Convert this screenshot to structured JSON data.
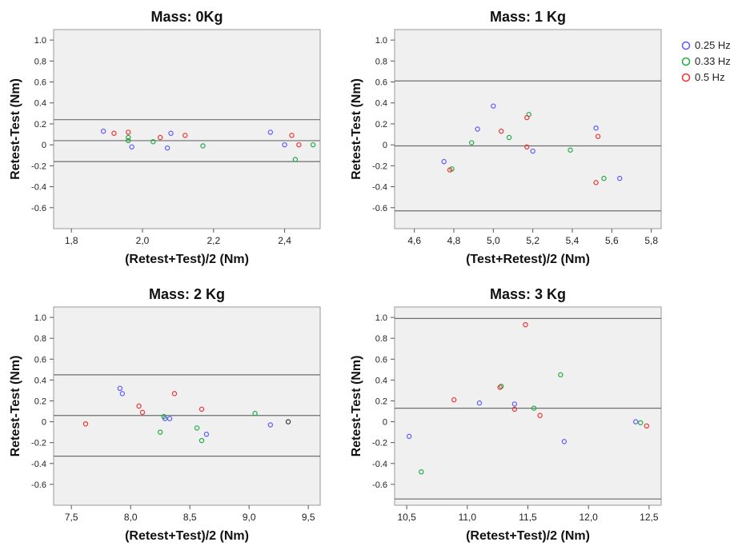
{
  "legend": {
    "placement": "top-right",
    "entries": [
      {
        "label": "0.25 Hz",
        "color": "#5b5bff"
      },
      {
        "label": "0.33 Hz",
        "color": "#22aa44"
      },
      {
        "label": "0.5 Hz",
        "color": "#ee3333"
      }
    ]
  },
  "chart_data": [
    {
      "type": "scatter",
      "title": "Mass: 0Kg",
      "xlabel": "(Retest+Test)/2 (Nm)",
      "ylabel": "Retest-Test (Nm)",
      "xlim": [
        1.75,
        2.5
      ],
      "ylim": [
        -0.8,
        1.1
      ],
      "xticks": [
        1.8,
        2.0,
        2.2,
        2.4
      ],
      "xtick_labels": [
        "1,8",
        "2,0",
        "2,2",
        "2,4"
      ],
      "yticks": [
        -0.6,
        -0.4,
        -0.2,
        0,
        0.2,
        0.4,
        0.6,
        0.8,
        1.0
      ],
      "ytick_labels": [
        "-0.6",
        "-0.4",
        "-0.2",
        "0",
        "0.2",
        "0.4",
        "0.6",
        "0.8",
        "1.0"
      ],
      "reference_lines": [
        0.24,
        0.04,
        -0.16
      ],
      "series": [
        {
          "name": "0.25 Hz",
          "x": [
            1.89,
            1.97,
            2.07,
            2.08,
            2.36,
            2.4
          ],
          "y": [
            0.13,
            -0.02,
            -0.03,
            0.11,
            0.12,
            0.0
          ]
        },
        {
          "name": "0.33 Hz",
          "x": [
            1.96,
            1.96,
            2.03,
            2.17,
            2.43,
            2.48
          ],
          "y": [
            0.04,
            0.07,
            0.03,
            -0.01,
            -0.14,
            0.0
          ]
        },
        {
          "name": "0.5 Hz",
          "x": [
            1.92,
            1.96,
            2.05,
            2.12,
            2.42,
            2.44
          ],
          "y": [
            0.11,
            0.12,
            0.07,
            0.09,
            0.09,
            0.0
          ]
        }
      ]
    },
    {
      "type": "scatter",
      "title": "Mass: 1 Kg",
      "xlabel": "(Test+Retest)/2 (Nm)",
      "ylabel": "Retest-Test (Nm)",
      "xlim": [
        4.5,
        5.85
      ],
      "ylim": [
        -0.8,
        1.1
      ],
      "xticks": [
        4.6,
        4.8,
        5.0,
        5.2,
        5.4,
        5.6,
        5.8
      ],
      "xtick_labels": [
        "4,6",
        "4,8",
        "5,0",
        "5,2",
        "5,4",
        "5,6",
        "5,8"
      ],
      "yticks": [
        -0.6,
        -0.4,
        -0.2,
        0,
        0.2,
        0.4,
        0.6,
        0.8,
        1.0
      ],
      "ytick_labels": [
        "-0.6",
        "-0.4",
        "-0.2",
        "0",
        "0.2",
        "0.4",
        "0.6",
        "0.8",
        "1.0"
      ],
      "reference_lines": [
        0.61,
        -0.01,
        -0.63
      ],
      "series": [
        {
          "name": "0.25 Hz",
          "x": [
            4.75,
            4.92,
            5.0,
            5.2,
            5.52,
            5.64
          ],
          "y": [
            -0.16,
            0.15,
            0.37,
            -0.06,
            0.16,
            -0.32
          ]
        },
        {
          "name": "0.33 Hz",
          "x": [
            4.79,
            4.89,
            5.08,
            5.18,
            5.39,
            5.56
          ],
          "y": [
            -0.23,
            0.02,
            0.07,
            0.29,
            -0.05,
            -0.32
          ]
        },
        {
          "name": "0.5 Hz",
          "x": [
            4.78,
            5.04,
            5.17,
            5.17,
            5.52,
            5.53
          ],
          "y": [
            -0.24,
            0.13,
            0.26,
            -0.02,
            -0.36,
            0.08
          ]
        }
      ]
    },
    {
      "type": "scatter",
      "title": "Mass: 2 Kg",
      "xlabel": "(Retest+Test)/2 (Nm)",
      "ylabel": "Retest-Test (Nm)",
      "xlim": [
        7.35,
        9.6
      ],
      "ylim": [
        -0.8,
        1.1
      ],
      "xticks": [
        7.5,
        8.0,
        8.5,
        9.0,
        9.5
      ],
      "xtick_labels": [
        "7,5",
        "8,0",
        "8,5",
        "9,0",
        "9,5"
      ],
      "yticks": [
        -0.6,
        -0.4,
        -0.2,
        0,
        0.2,
        0.4,
        0.6,
        0.8,
        1.0
      ],
      "ytick_labels": [
        "-0.6",
        "-0.4",
        "-0.2",
        "0",
        "0.2",
        "0.4",
        "0.6",
        "0.8",
        "1.0"
      ],
      "reference_lines": [
        0.45,
        0.06,
        -0.33
      ],
      "series": [
        {
          "name": "0.25 Hz",
          "x": [
            7.91,
            7.93,
            8.29,
            8.33,
            8.64,
            9.18
          ],
          "y": [
            0.32,
            0.27,
            0.03,
            0.03,
            -0.12,
            -0.03
          ]
        },
        {
          "name": "0.33 Hz",
          "x": [
            8.25,
            8.28,
            8.56,
            8.6,
            9.05
          ],
          "y": [
            -0.1,
            0.05,
            -0.06,
            -0.18,
            0.08
          ]
        },
        {
          "name": "0.5 Hz",
          "x": [
            7.62,
            8.07,
            8.1,
            8.37,
            8.6
          ],
          "y": [
            -0.02,
            0.15,
            0.09,
            0.27,
            0.12
          ]
        },
        {
          "name": "",
          "color": "#333333",
          "x": [
            9.33
          ],
          "y": [
            0.0
          ]
        }
      ]
    },
    {
      "type": "scatter",
      "title": "Mass: 3 Kg",
      "xlabel": "(Retest+Test)/2 (Nm)",
      "ylabel": "Retest-Test (Nm)",
      "xlim": [
        10.4,
        12.6
      ],
      "ylim": [
        -0.8,
        1.1
      ],
      "xticks": [
        10.5,
        11.0,
        11.5,
        12.0,
        12.5
      ],
      "xtick_labels": [
        "10,5",
        "11,0",
        "11,5",
        "12,0",
        "12,5"
      ],
      "yticks": [
        -0.6,
        -0.4,
        -0.2,
        0,
        0.2,
        0.4,
        0.6,
        0.8,
        1.0
      ],
      "ytick_labels": [
        "-0.6",
        "-0.4",
        "-0.2",
        "0",
        "0.2",
        "0.4",
        "0.6",
        "0.8",
        "1.0"
      ],
      "reference_lines": [
        0.99,
        0.13,
        -0.74
      ],
      "series": [
        {
          "name": "0.25 Hz",
          "x": [
            10.52,
            11.1,
            11.39,
            11.8,
            12.39
          ],
          "y": [
            -0.14,
            0.18,
            0.17,
            -0.19,
            0.0
          ]
        },
        {
          "name": "0.33 Hz",
          "x": [
            10.62,
            11.28,
            11.55,
            11.77,
            12.43
          ],
          "y": [
            -0.48,
            0.34,
            0.13,
            0.45,
            -0.01
          ]
        },
        {
          "name": "0.5 Hz",
          "x": [
            10.89,
            11.27,
            11.39,
            11.48,
            11.6,
            12.48
          ],
          "y": [
            0.21,
            0.33,
            0.12,
            0.93,
            0.06,
            -0.04
          ]
        }
      ]
    }
  ]
}
